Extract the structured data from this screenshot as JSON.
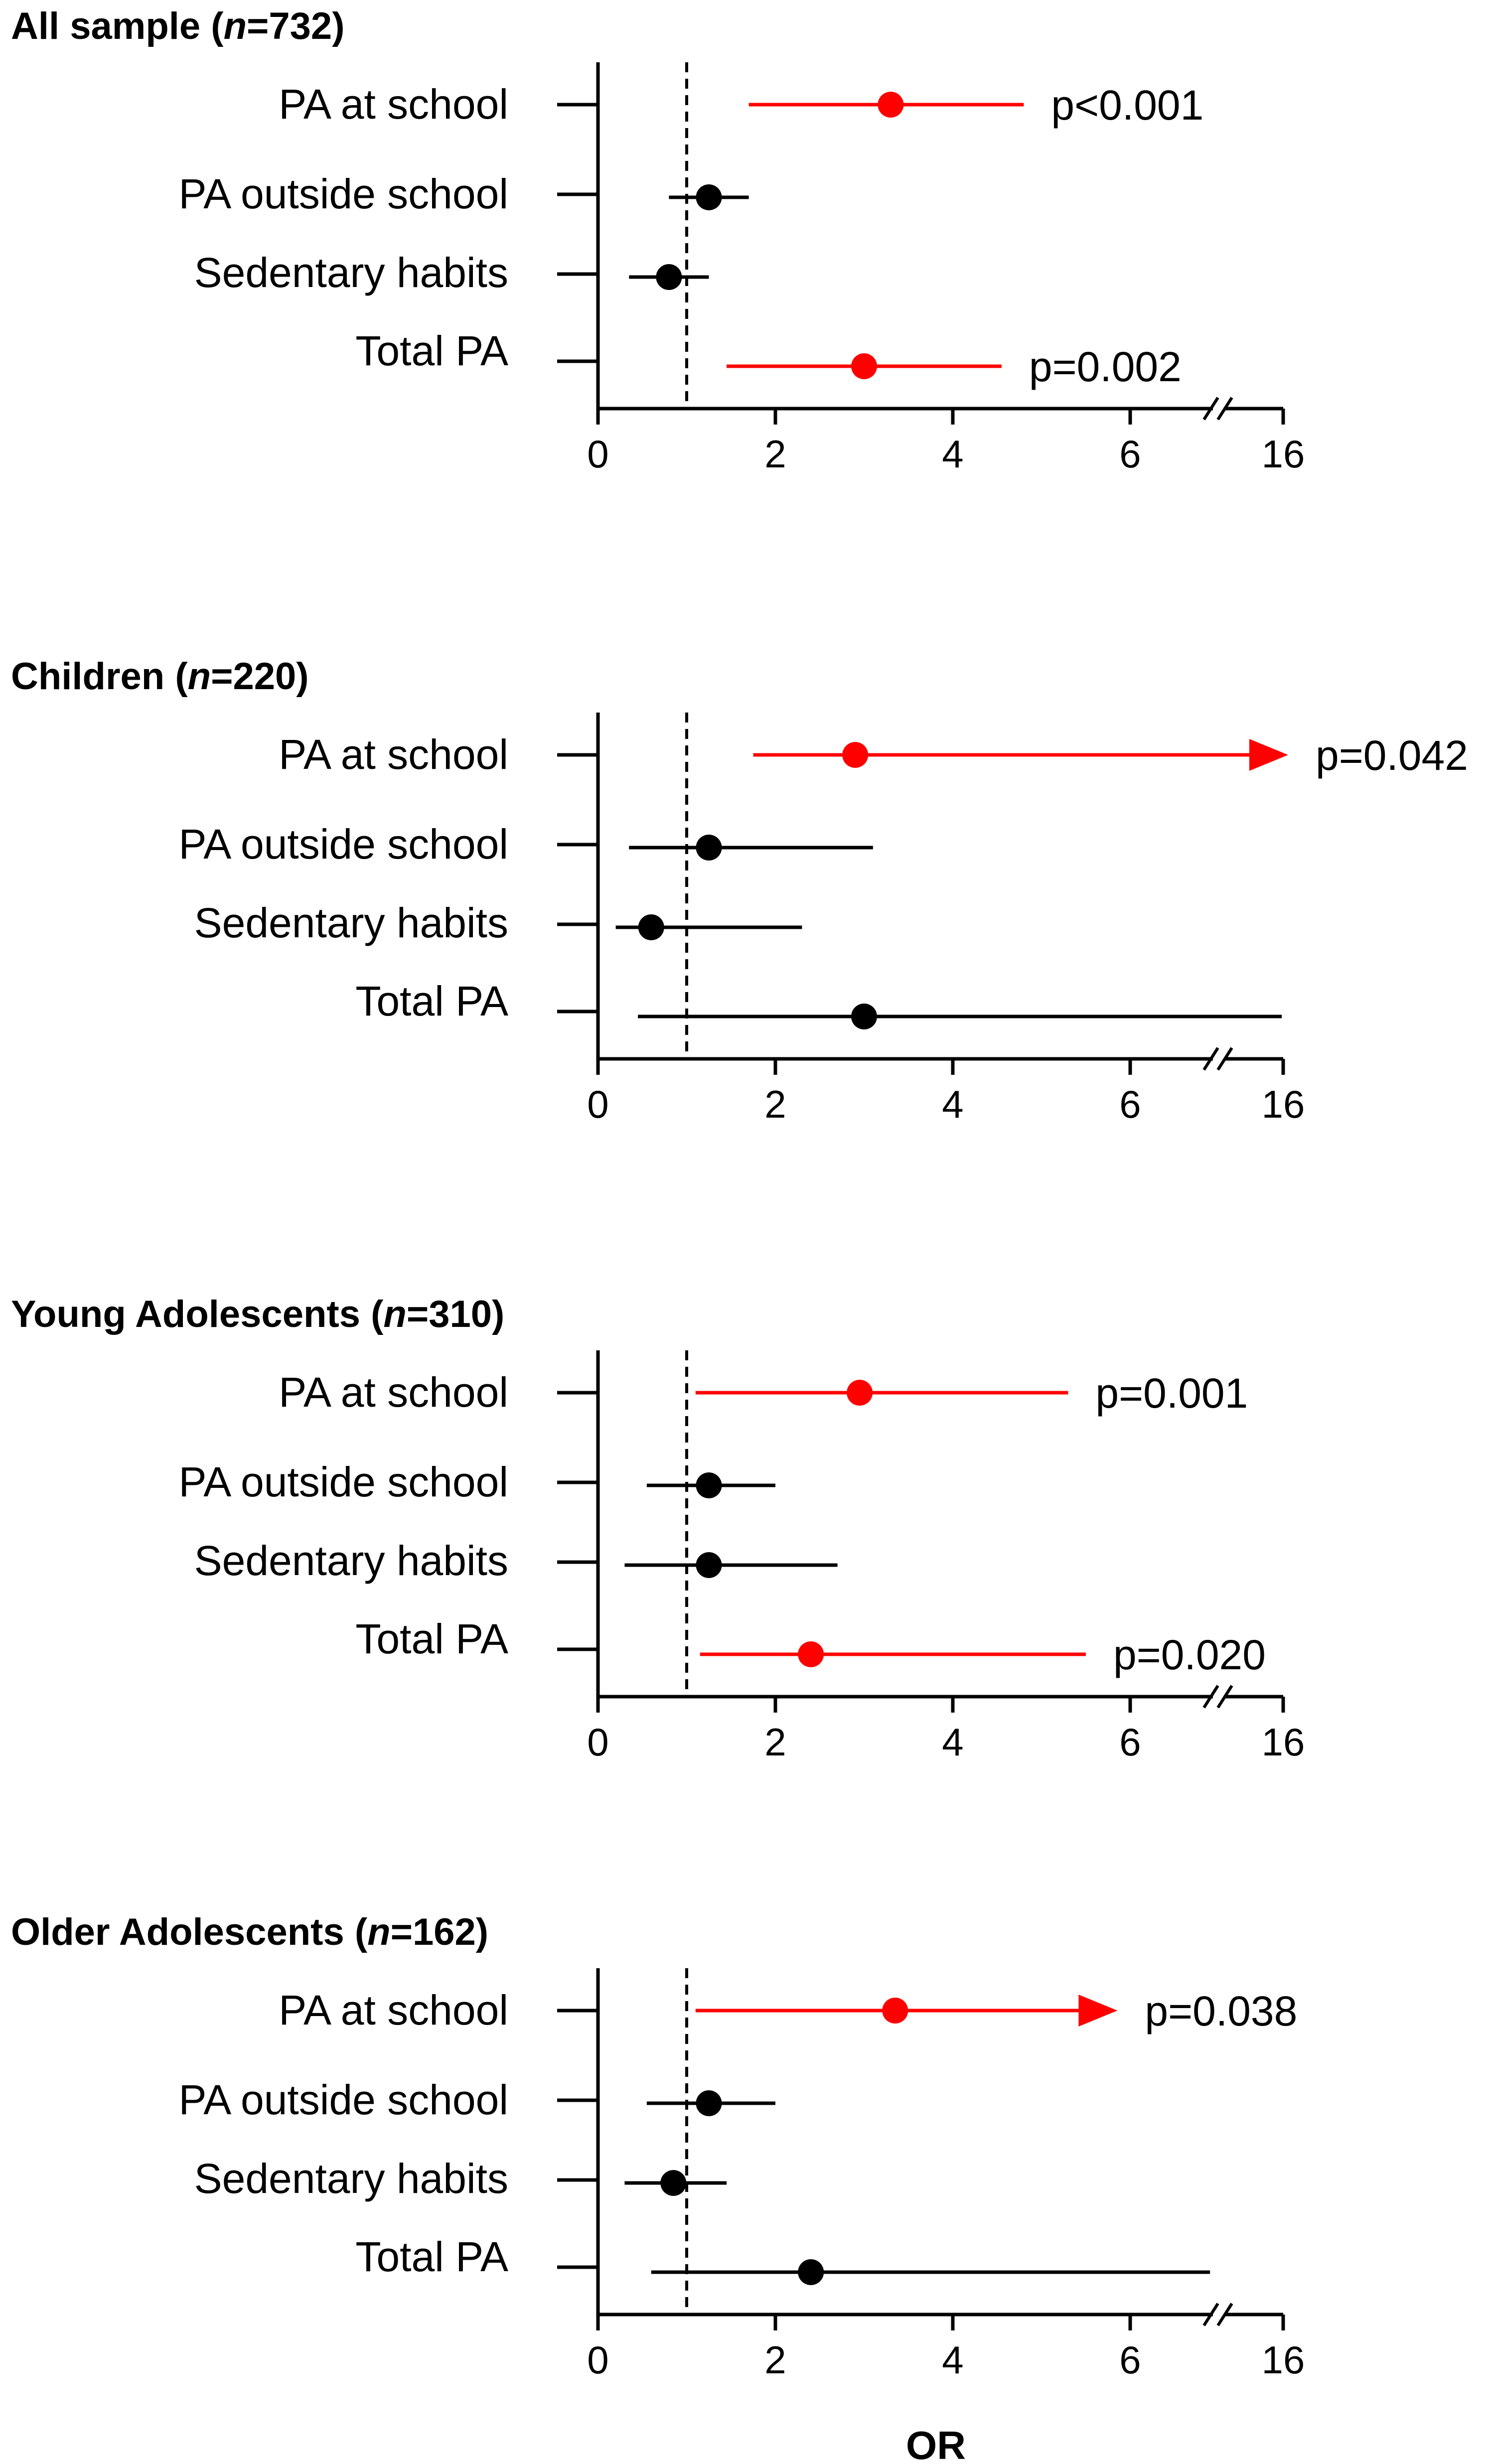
{
  "chart_data": {
    "type": "forest",
    "xlabel": "OR",
    "x_ticks": [
      0,
      2,
      4,
      6,
      16
    ],
    "x_axis_break": "between 6 and 16",
    "reference_line": 1,
    "panels": [
      {
        "title_prefix": "All sample (",
        "title_n": "n",
        "title_suffix": "=732)",
        "rows": [
          {
            "label": "PA at school",
            "or": 3.3,
            "lo": 1.7,
            "hi": 4.8,
            "significant": true,
            "p": "p<0.001",
            "arrow": false
          },
          {
            "label": "PA outside school",
            "or": 1.25,
            "lo": 0.8,
            "hi": 1.7,
            "significant": false,
            "p": "",
            "arrow": false
          },
          {
            "label": "Sedentary habits",
            "or": 0.8,
            "lo": 0.35,
            "hi": 1.25,
            "significant": false,
            "p": "",
            "arrow": false
          },
          {
            "label": "Total PA",
            "or": 3.0,
            "lo": 1.45,
            "hi": 4.55,
            "significant": true,
            "p": "p=0.002",
            "arrow": false
          }
        ]
      },
      {
        "title_prefix": "Children (",
        "title_n": "n",
        "title_suffix": "=220)",
        "rows": [
          {
            "label": "PA at school",
            "or": 2.9,
            "lo": 1.75,
            "hi": 16,
            "significant": true,
            "p": "p=0.042",
            "arrow": true
          },
          {
            "label": "PA outside school",
            "or": 1.25,
            "lo": 0.35,
            "hi": 3.1,
            "significant": false,
            "p": "",
            "arrow": false
          },
          {
            "label": "Sedentary habits",
            "or": 0.6,
            "lo": 0.2,
            "hi": 2.3,
            "significant": false,
            "p": "",
            "arrow": false
          },
          {
            "label": "Total PA",
            "or": 3.0,
            "lo": 0.45,
            "hi": 15.8,
            "significant": false,
            "p": "",
            "arrow": false
          }
        ]
      },
      {
        "title_prefix": "Young Adolescents (",
        "title_n": "n",
        "title_suffix": "=310)",
        "rows": [
          {
            "label": "PA at school",
            "or": 2.95,
            "lo": 1.1,
            "hi": 5.3,
            "significant": true,
            "p": "p=0.001",
            "arrow": false
          },
          {
            "label": "PA outside school",
            "or": 1.25,
            "lo": 0.55,
            "hi": 2.0,
            "significant": false,
            "p": "",
            "arrow": false
          },
          {
            "label": "Sedentary habits",
            "or": 1.25,
            "lo": 0.3,
            "hi": 2.7,
            "significant": false,
            "p": "",
            "arrow": false
          },
          {
            "label": "Total PA",
            "or": 2.4,
            "lo": 1.15,
            "hi": 5.5,
            "significant": true,
            "p": "p=0.020",
            "arrow": false
          }
        ]
      },
      {
        "title_prefix": "Older Adolescents (",
        "title_n": "n",
        "title_suffix": "=162)",
        "rows": [
          {
            "label": "PA at school",
            "or": 3.35,
            "lo": 1.1,
            "hi": 5.8,
            "significant": true,
            "p": "p=0.038",
            "arrow": true
          },
          {
            "label": "PA outside school",
            "or": 1.25,
            "lo": 0.55,
            "hi": 2.0,
            "significant": false,
            "p": "",
            "arrow": false
          },
          {
            "label": "Sedentary habits",
            "or": 0.85,
            "lo": 0.3,
            "hi": 1.45,
            "significant": false,
            "p": "",
            "arrow": false
          },
          {
            "label": "Total PA",
            "or": 2.4,
            "lo": 0.6,
            "hi": 6.9,
            "significant": false,
            "p": "",
            "arrow": false
          }
        ]
      }
    ],
    "colors": {
      "significant": "#ff0000",
      "nonsignificant": "#000000",
      "axis": "#000000"
    }
  }
}
